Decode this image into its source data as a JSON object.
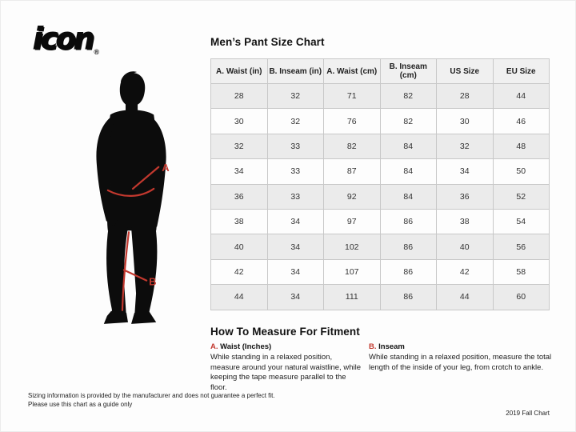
{
  "page": {
    "logo_text": "icon",
    "logo_registered": "®",
    "footer_note_line1": "Sizing information is provided by the manufacturer and does not guarantee a perfect fit.",
    "footer_note_line2": "Please use this chart as a guide only",
    "footer_right": "2019 Fall Chart"
  },
  "figure": {
    "label_a": "A",
    "label_b": "B"
  },
  "size_chart": {
    "title": "Men’s Pant Size Chart",
    "columns": [
      "A. Waist (in)",
      "B. Inseam (in)",
      "A. Waist (cm)",
      "B. Inseam (cm)",
      "US Size",
      "EU Size"
    ],
    "rows": [
      [
        "28",
        "32",
        "71",
        "82",
        "28",
        "44"
      ],
      [
        "30",
        "32",
        "76",
        "82",
        "30",
        "46"
      ],
      [
        "32",
        "33",
        "82",
        "84",
        "32",
        "48"
      ],
      [
        "34",
        "33",
        "87",
        "84",
        "34",
        "50"
      ],
      [
        "36",
        "33",
        "92",
        "84",
        "36",
        "52"
      ],
      [
        "38",
        "34",
        "97",
        "86",
        "38",
        "54"
      ],
      [
        "40",
        "34",
        "102",
        "86",
        "40",
        "56"
      ],
      [
        "42",
        "34",
        "107",
        "86",
        "42",
        "58"
      ],
      [
        "44",
        "34",
        "111",
        "86",
        "44",
        "60"
      ]
    ]
  },
  "how_to_measure": {
    "title": "How To Measure For Fitment",
    "waist": {
      "label_prefix": "A.",
      "label": "Waist (Inches)",
      "text": "While standing in a relaxed position, measure around your natural waistline, while keeping the tape measure parallel to the floor."
    },
    "inseam": {
      "label_prefix": "B.",
      "label": "Inseam",
      "text": "While standing in a relaxed position, measure the total length of the inside of your leg, from crotch to ankle."
    }
  },
  "colors": {
    "accent_red": "#c2382e",
    "table_border": "#c8c8c8",
    "header_bg": "#f0f0f0",
    "row_alt_bg": "#ebebeb"
  }
}
